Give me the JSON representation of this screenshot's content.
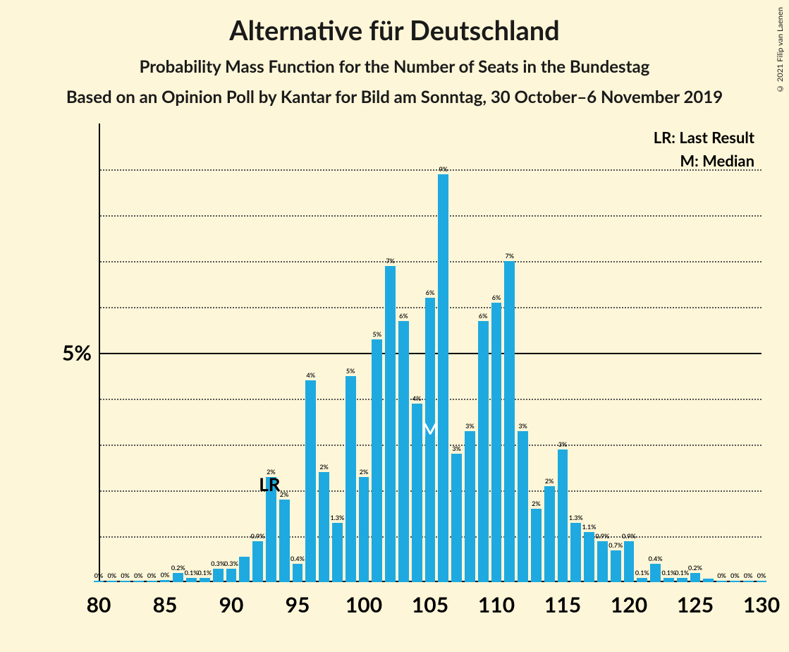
{
  "copyright": "© 2021 Filip van Laenen",
  "titles": {
    "main": "Alternative für Deutschland",
    "sub1": "Probability Mass Function for the Number of Seats in the Bundestag",
    "sub2": "Based on an Opinion Poll by Kantar for Bild am Sonntag, 30 October–6 November 2019"
  },
  "legend": {
    "lr": "LR: Last Result",
    "m": "M: Median"
  },
  "annotations": {
    "lr": "LR",
    "m": "M"
  },
  "chart": {
    "type": "bar",
    "bar_color": "#1eaae0",
    "background_color": "#fdf6d8",
    "grid_color_dotted": "#555555",
    "grid_color_solid": "#000000",
    "axis_color": "#000000",
    "text_color": "#000000",
    "xlim": [
      80,
      130
    ],
    "ylim": [
      0,
      10
    ],
    "y_axis_label": "5%",
    "y_axis_label_at": 5,
    "y_grid_dotted": [
      1,
      2,
      3,
      4,
      6,
      7,
      8,
      9
    ],
    "y_grid_solid": [
      5
    ],
    "x_ticks": [
      80,
      85,
      90,
      95,
      100,
      105,
      110,
      115,
      120,
      125,
      130
    ],
    "bar_width_ratio": 0.78,
    "lr_at": 94,
    "m_at": 105,
    "bars": [
      {
        "x": 80,
        "label": "0%",
        "value": 0.03
      },
      {
        "x": 81,
        "label": "0%",
        "value": 0.03
      },
      {
        "x": 82,
        "label": "0%",
        "value": 0.03
      },
      {
        "x": 83,
        "label": "0%",
        "value": 0.03
      },
      {
        "x": 84,
        "label": "0%",
        "value": 0.03
      },
      {
        "x": 85,
        "label": "0%",
        "value": 0.05
      },
      {
        "x": 86,
        "label": "0.2%",
        "value": 0.2
      },
      {
        "x": 87,
        "label": "0.1%",
        "value": 0.1
      },
      {
        "x": 88,
        "label": "0.1%",
        "value": 0.1
      },
      {
        "x": 89,
        "label": "0.3%",
        "value": 0.3
      },
      {
        "x": 90,
        "label": "0.3%",
        "value": 0.3
      },
      {
        "x": 91,
        "label": "",
        "value": 0.55
      },
      {
        "x": 92,
        "label": "0.9%",
        "value": 0.9
      },
      {
        "x": 93,
        "label": "2%",
        "value": 2.3
      },
      {
        "x": 94,
        "label": "2%",
        "value": 1.8
      },
      {
        "x": 95,
        "label": "0.4%",
        "value": 0.4
      },
      {
        "x": 96,
        "label": "4%",
        "value": 4.4
      },
      {
        "x": 97,
        "label": "2%",
        "value": 2.4
      },
      {
        "x": 98,
        "label": "1.3%",
        "value": 1.3
      },
      {
        "x": 99,
        "label": "5%",
        "value": 4.5
      },
      {
        "x": 100,
        "label": "2%",
        "value": 2.3
      },
      {
        "x": 101,
        "label": "5%",
        "value": 5.3
      },
      {
        "x": 102,
        "label": "7%",
        "value": 6.9
      },
      {
        "x": 103,
        "label": "6%",
        "value": 5.7
      },
      {
        "x": 104,
        "label": "4%",
        "value": 3.9
      },
      {
        "x": 105,
        "label": "6%",
        "value": 6.2
      },
      {
        "x": 106,
        "label": "9%",
        "value": 8.9
      },
      {
        "x": 107,
        "label": "3%",
        "value": 2.8
      },
      {
        "x": 108,
        "label": "3%",
        "value": 3.3
      },
      {
        "x": 109,
        "label": "6%",
        "value": 5.7
      },
      {
        "x": 110,
        "label": "6%",
        "value": 6.1
      },
      {
        "x": 111,
        "label": "7%",
        "value": 7.0
      },
      {
        "x": 112,
        "label": "3%",
        "value": 3.3
      },
      {
        "x": 113,
        "label": "2%",
        "value": 1.6
      },
      {
        "x": 114,
        "label": "2%",
        "value": 2.1
      },
      {
        "x": 115,
        "label": "3%",
        "value": 2.9
      },
      {
        "x": 116,
        "label": "1.3%",
        "value": 1.3
      },
      {
        "x": 117,
        "label": "1.1%",
        "value": 1.1
      },
      {
        "x": 118,
        "label": "0.9%",
        "value": 0.9
      },
      {
        "x": 119,
        "label": "0.7%",
        "value": 0.7
      },
      {
        "x": 120,
        "label": "0.9%",
        "value": 0.9
      },
      {
        "x": 121,
        "label": "0.1%",
        "value": 0.1
      },
      {
        "x": 122,
        "label": "0.4%",
        "value": 0.4
      },
      {
        "x": 123,
        "label": "0.1%",
        "value": 0.1
      },
      {
        "x": 124,
        "label": "0.1%",
        "value": 0.1
      },
      {
        "x": 125,
        "label": "0.2%",
        "value": 0.2
      },
      {
        "x": 126,
        "label": "",
        "value": 0.07
      },
      {
        "x": 127,
        "label": "0%",
        "value": 0.03
      },
      {
        "x": 128,
        "label": "0%",
        "value": 0.03
      },
      {
        "x": 129,
        "label": "0%",
        "value": 0.03
      },
      {
        "x": 130,
        "label": "0%",
        "value": 0.03
      }
    ]
  }
}
